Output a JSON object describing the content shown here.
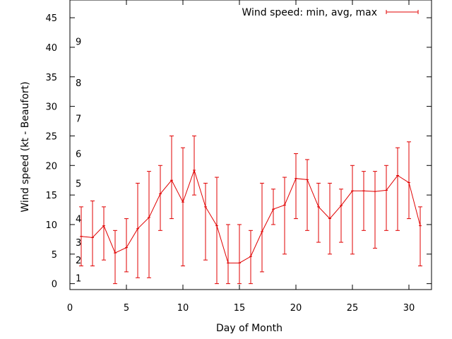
{
  "chart_data": {
    "type": "line",
    "xlabel": "Day of Month",
    "ylabel": "Wind speed (kt - Beaufort)",
    "xlim": [
      0,
      32
    ],
    "ylim": [
      -1,
      48
    ],
    "xticks": [
      0,
      5,
      10,
      15,
      20,
      25,
      30
    ],
    "yticks": [
      0,
      5,
      10,
      15,
      20,
      25,
      30,
      35,
      40,
      45
    ],
    "grid": false,
    "legend_position": "top-right",
    "series_color": "#e00000",
    "series": [
      {
        "name": "Wind speed: min, avg, max",
        "x": [
          1,
          2,
          3,
          4,
          5,
          6,
          7,
          8,
          9,
          10,
          11,
          12,
          13,
          14,
          15,
          16,
          17,
          18,
          19,
          20,
          21,
          22,
          23,
          24,
          25,
          26,
          27,
          28,
          29,
          30,
          31
        ],
        "avg": [
          8,
          7.8,
          9.8,
          5.2,
          6.1,
          9.3,
          11.2,
          15.2,
          17.5,
          13.8,
          19.2,
          13,
          9.8,
          3.5,
          3.5,
          4.6,
          8.8,
          12.6,
          13.3,
          17.8,
          17.6,
          13,
          11,
          13.2,
          15.7,
          15.7,
          15.6,
          15.8,
          18.3,
          17.1,
          9.8
        ],
        "min": [
          3,
          3,
          4,
          0,
          2,
          1,
          1,
          9,
          11,
          3,
          15,
          4,
          0,
          0,
          0,
          0,
          2,
          10,
          5,
          11,
          9,
          7,
          5,
          7,
          5,
          9,
          6,
          9,
          9,
          11,
          3
        ],
        "max": [
          13,
          14,
          13,
          9,
          11,
          17,
          19,
          20,
          25,
          23,
          25,
          17,
          18,
          10,
          10,
          9,
          17,
          16,
          18,
          22,
          21,
          17,
          17,
          16,
          20,
          19,
          19,
          20,
          23,
          24,
          13
        ]
      }
    ],
    "annotations": [
      {
        "text": "1",
        "y": 1
      },
      {
        "text": "2",
        "y": 4
      },
      {
        "text": "3",
        "y": 7
      },
      {
        "text": "4",
        "y": 11
      },
      {
        "text": "5",
        "y": 17
      },
      {
        "text": "6",
        "y": 22
      },
      {
        "text": "7",
        "y": 28
      },
      {
        "text": "8",
        "y": 34
      },
      {
        "text": "9",
        "y": 41
      }
    ]
  }
}
